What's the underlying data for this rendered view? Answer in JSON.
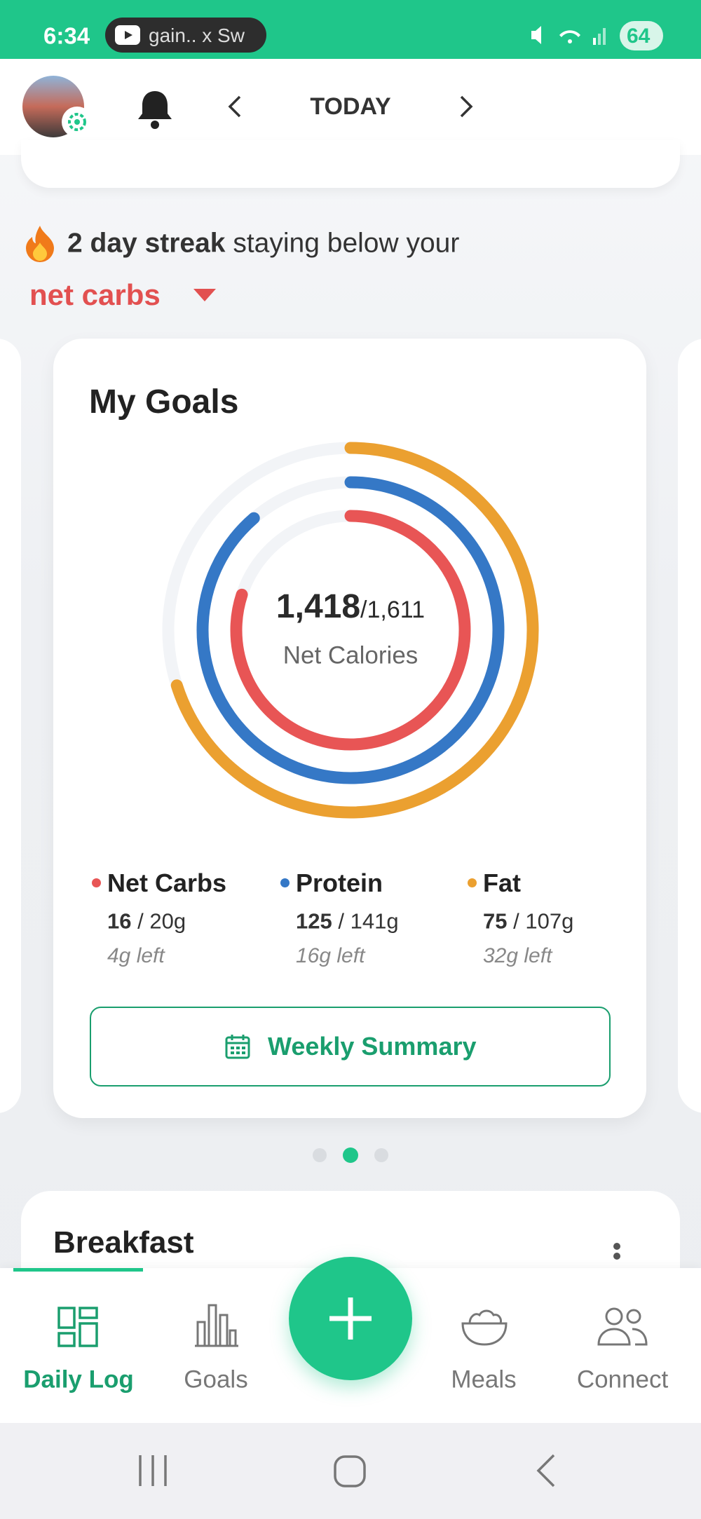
{
  "status_bar": {
    "time": "6:34",
    "media": "gain.. x Sw",
    "battery": "64"
  },
  "header": {
    "title": "TODAY"
  },
  "streak": {
    "highlight": "2 day streak",
    "text": "staying below your",
    "metric": "net carbs"
  },
  "goals_card": {
    "title": "My Goals",
    "separator": "/",
    "calories": {
      "consumed": "1,418",
      "goal": "1,611",
      "label": "Net Calories"
    },
    "macros": [
      {
        "name": "Net Carbs",
        "color": "#e85555",
        "consumed": 16,
        "goal": 20,
        "unit": "g",
        "remaining": "4g left"
      },
      {
        "name": "Protein",
        "color": "#3578c6",
        "consumed": 125,
        "goal": 141,
        "unit": "g",
        "remaining": "16g left"
      },
      {
        "name": "Fat",
        "color": "#eba030",
        "consumed": 75,
        "goal": 107,
        "unit": "g",
        "remaining": "32g left"
      }
    ],
    "button": "Weekly Summary"
  },
  "meal_section": {
    "title": "Breakfast"
  },
  "bottom_nav": {
    "items": [
      "Daily Log",
      "Goals",
      "Meals",
      "Connect"
    ]
  }
}
